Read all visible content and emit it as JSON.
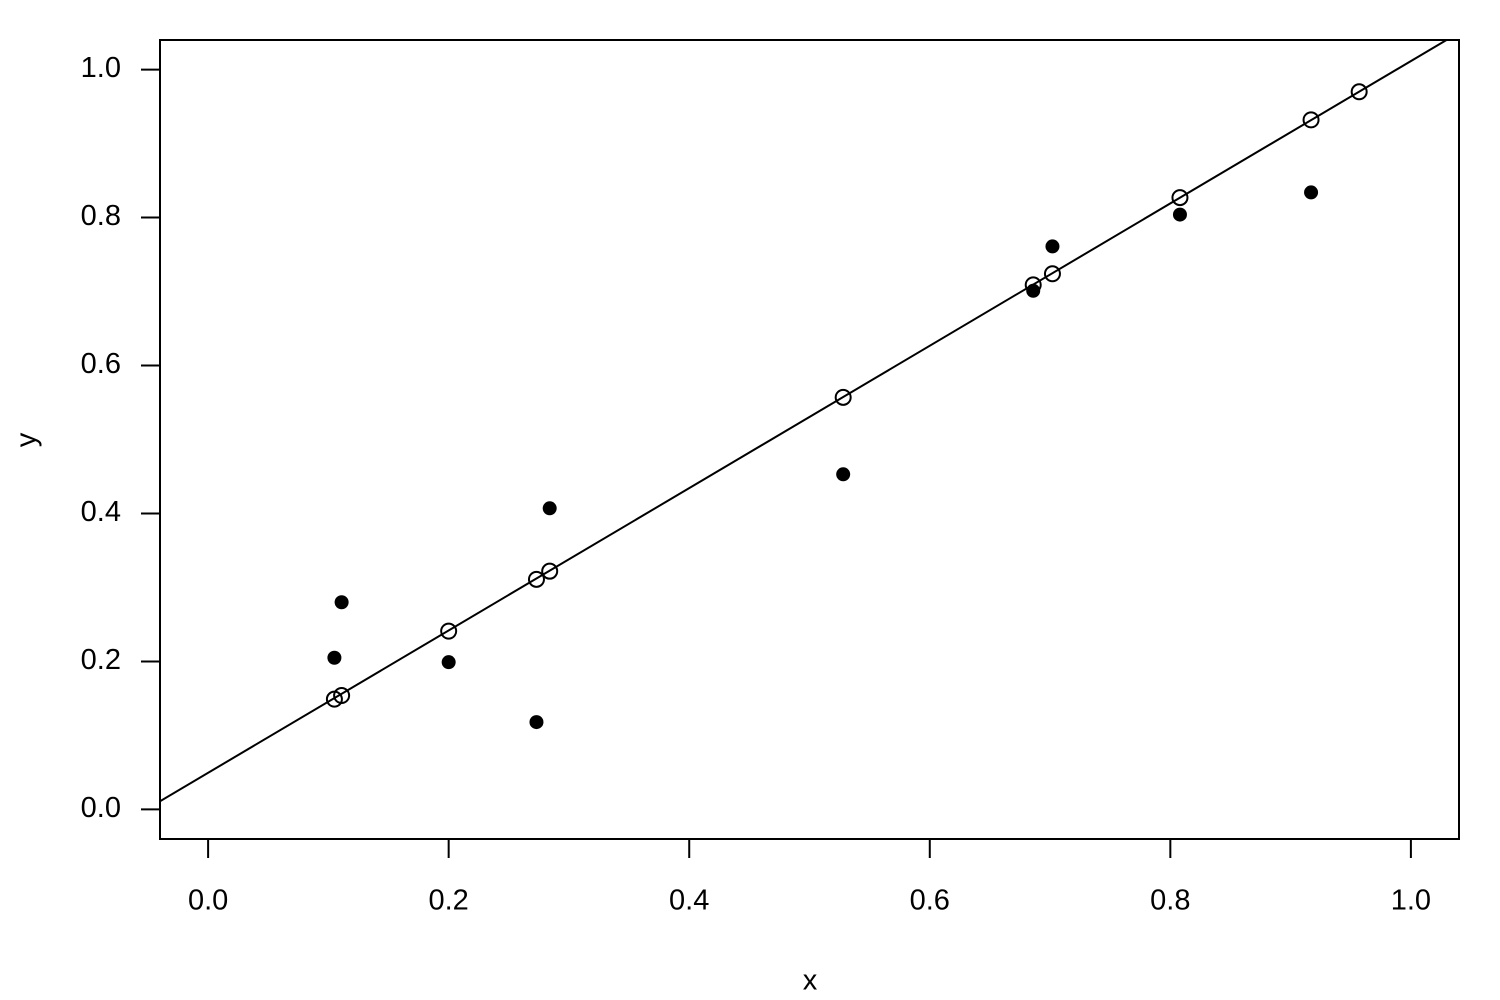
{
  "chart_data": {
    "type": "scatter",
    "x_label": "x",
    "y_label": "y",
    "xlim": [
      -0.04,
      1.04
    ],
    "ylim": [
      -0.04,
      1.04
    ],
    "xticks": [
      {
        "value": 0,
        "label": "0.0"
      },
      0.2,
      0.4,
      0.6,
      0.8,
      {
        "value": 1,
        "label": "1.0"
      }
    ],
    "yticks": [
      {
        "value": 0,
        "label": "0.0"
      },
      0.2,
      0.4,
      0.6,
      0.8,
      {
        "value": 1,
        "label": "1.0"
      }
    ],
    "series": [
      {
        "marker": "filled",
        "color": "#000000",
        "x": [
          0.105,
          0.111,
          0.2,
          0.273,
          0.284,
          0.528,
          0.686,
          0.702,
          0.808,
          0.917
        ],
        "values": [
          0.205,
          0.28,
          0.199,
          0.118,
          0.407,
          0.453,
          0.701,
          0.761,
          0.804,
          0.834
        ]
      },
      {
        "marker": "open",
        "color": "#000000",
        "x": [
          0.105,
          0.111,
          0.2,
          0.273,
          0.284,
          0.528,
          0.686,
          0.702,
          0.808,
          0.917,
          0.957
        ],
        "values": [
          0.149,
          0.154,
          0.241,
          0.311,
          0.322,
          0.557,
          0.709,
          0.724,
          0.827,
          0.932,
          0.97
        ]
      }
    ],
    "lines": [
      {
        "color": "#000000",
        "x": [
          -0.04,
          1.04
        ],
        "values": [
          0.011,
          1.05
        ]
      }
    ]
  }
}
